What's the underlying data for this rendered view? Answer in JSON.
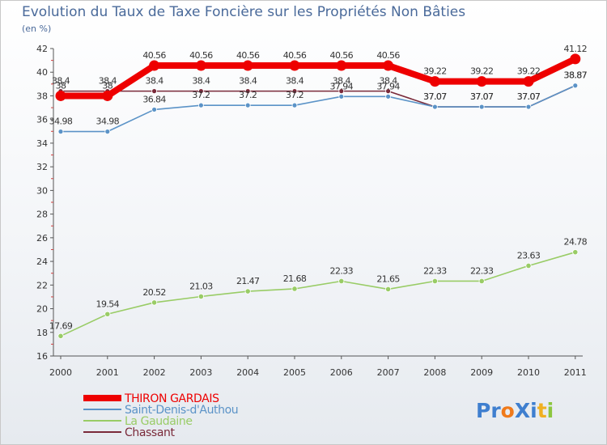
{
  "chart_data": {
    "type": "line",
    "title": "Evolution du Taux de Taxe Foncière sur les Propriétés Non Bâties",
    "subtitle": "(en %)",
    "xlabel": "",
    "ylabel": "(en %)",
    "ylim": [
      16,
      42
    ],
    "yticks": [
      16,
      18,
      20,
      22,
      24,
      26,
      28,
      30,
      32,
      34,
      36,
      38,
      40,
      42
    ],
    "categories": [
      "2000",
      "2001",
      "2002",
      "2003",
      "2004",
      "2005",
      "2006",
      "2007",
      "2008",
      "2009",
      "2010",
      "2011"
    ],
    "grid": false,
    "legend_position": "bottom-left",
    "series": [
      {
        "name": "THIRON GARDAIS",
        "color": "#ee0000",
        "values": [
          38,
          38,
          40.56,
          40.56,
          40.56,
          40.56,
          40.56,
          40.56,
          39.22,
          39.22,
          39.22,
          41.12
        ],
        "labels": [
          "38",
          "38",
          "40.56",
          "40.56",
          "40.56",
          "40.56",
          "40.56",
          "40.56",
          "39.22",
          "39.22",
          "39.22",
          "41.12"
        ]
      },
      {
        "name": "Saint-Denis-d'Authou",
        "color": "#5b93c7",
        "values": [
          34.98,
          34.98,
          36.84,
          37.2,
          37.2,
          37.2,
          37.94,
          37.94,
          37.07,
          37.07,
          37.07,
          38.87
        ],
        "labels": [
          "34.98",
          "34.98",
          "36.84",
          "37.2",
          "37.2",
          "37.2",
          "37.94",
          "37.94",
          "37.07",
          "37.07",
          "37.07",
          "38.87"
        ]
      },
      {
        "name": "La Gaudaine",
        "color": "#99cc66",
        "values": [
          17.69,
          19.54,
          20.52,
          21.03,
          21.47,
          21.68,
          22.33,
          21.65,
          22.33,
          22.33,
          23.63,
          24.78
        ],
        "labels": [
          "17.69",
          "19.54",
          "20.52",
          "21.03",
          "21.47",
          "21.68",
          "22.33",
          "21.65",
          "22.33",
          "22.33",
          "23.63",
          "24.78"
        ]
      },
      {
        "name": "Chassant",
        "color": "#7a2a3a",
        "values": [
          38.4,
          38.4,
          38.4,
          38.4,
          38.4,
          38.4,
          38.4,
          38.4,
          37.07,
          37.07,
          37.07,
          38.87
        ],
        "labels": [
          "38.4",
          "38.4",
          "38.4",
          "38.4",
          "38.4",
          "38.4",
          "38.4",
          "38.4",
          "37.07",
          "37.07",
          "37.07",
          "38.87"
        ]
      }
    ]
  },
  "logo": {
    "text": "ProXiti",
    "letter_colors": [
      "#3f7fcf",
      "#3f7fcf",
      "#f07a1a",
      "#3f7fcf",
      "#3f7fcf",
      "#f0b020",
      "#8cc63f"
    ]
  }
}
